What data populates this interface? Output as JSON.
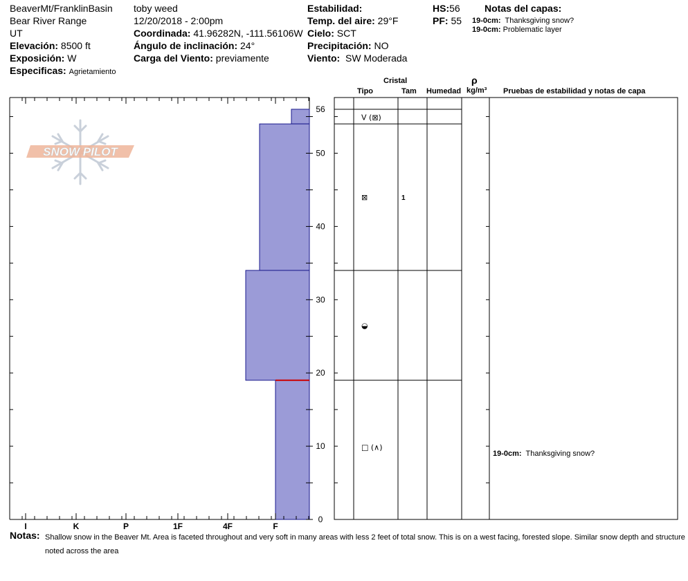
{
  "header": {
    "location": "BeaverMt/FranklinBasin",
    "range": "Bear River Range",
    "state": "UT",
    "elevation_label": "Elevación:",
    "elevation_value": "8500 ft",
    "aspect_label": "Exposición:",
    "aspect_value": "W",
    "specifics_label": "Especificas:",
    "specifics_value": "Agrietamiento",
    "observer": "toby weed",
    "datetime": "12/20/2018 - 2:00pm",
    "coord_label": "Coordinada:",
    "coord_value": "41.96282N, -111.56106W",
    "slope_label": "Ángulo de inclinación:",
    "slope_value": "24°",
    "wind_load_label": "Carga del Viento:",
    "wind_load_value": "previamente",
    "stability_label": "Estabilidad:",
    "air_temp_label": "Temp. del aire:",
    "air_temp_value": "29°F",
    "sky_label": "Cielo:",
    "sky_value": "SCT",
    "precip_label": "Precipitación:",
    "precip_value": "NO",
    "wind_label": "Viento:",
    "wind_value": "SW Moderada",
    "hs_label": "HS:",
    "hs_value": "56",
    "pf_label": "PF:",
    "pf_value": "55",
    "layer_notes_title": "Notas del capas:",
    "layer_notes": [
      {
        "depth": "19-0cm:",
        "text": "Thanksgiving snow?"
      },
      {
        "depth": "19-0cm:",
        "text": "Problematic layer"
      }
    ]
  },
  "logo_text": "SNOW PILOT",
  "columns": {
    "crystal": "Cristal",
    "type": "Tipo",
    "size": "Tam",
    "moisture": "Humedad",
    "rho": "ρ",
    "density_unit": "kg/m³",
    "tests": "Pruebas de estabilidad y notas de capa"
  },
  "chart_data": {
    "type": "bar",
    "title": "",
    "ylim": [
      0,
      56
    ],
    "y_ticks": [
      0,
      10,
      20,
      30,
      40,
      50,
      56
    ],
    "hardness_scale": [
      "I",
      "K",
      "P",
      "1F",
      "4F",
      "F"
    ],
    "hardness_axis_order": "reversed (F at right edge, I at left)",
    "layers": [
      {
        "top": 56,
        "bottom": 54,
        "hardness": "F-",
        "type": "V (⊠)",
        "size": "",
        "moisture": ""
      },
      {
        "top": 54,
        "bottom": 34,
        "hardness": "F+",
        "type": "⊠",
        "size": "1",
        "moisture": ""
      },
      {
        "top": 34,
        "bottom": 19,
        "hardness": "4F-",
        "type": "◒",
        "size": "",
        "moisture": ""
      },
      {
        "top": 19,
        "bottom": 0,
        "hardness": "F",
        "type": "□ (∧)",
        "size": "",
        "moisture": ""
      }
    ],
    "problem_layer_depth": 19,
    "layer_color": "#9b9bd7",
    "edge_color": "#1a1a8c",
    "problem_color": "#cc0000",
    "test_notes": [
      {
        "depth": "19-0cm:",
        "text": "Thanksgiving snow?"
      }
    ]
  },
  "notes_label": "Notas:",
  "notes": "Shallow snow in the Beaver Mt. Area is faceted throughout and very soft in many areas with less 2 feet of total snow.  This is on a west facing, forested slope.  Similar snow depth and structure noted across the area"
}
